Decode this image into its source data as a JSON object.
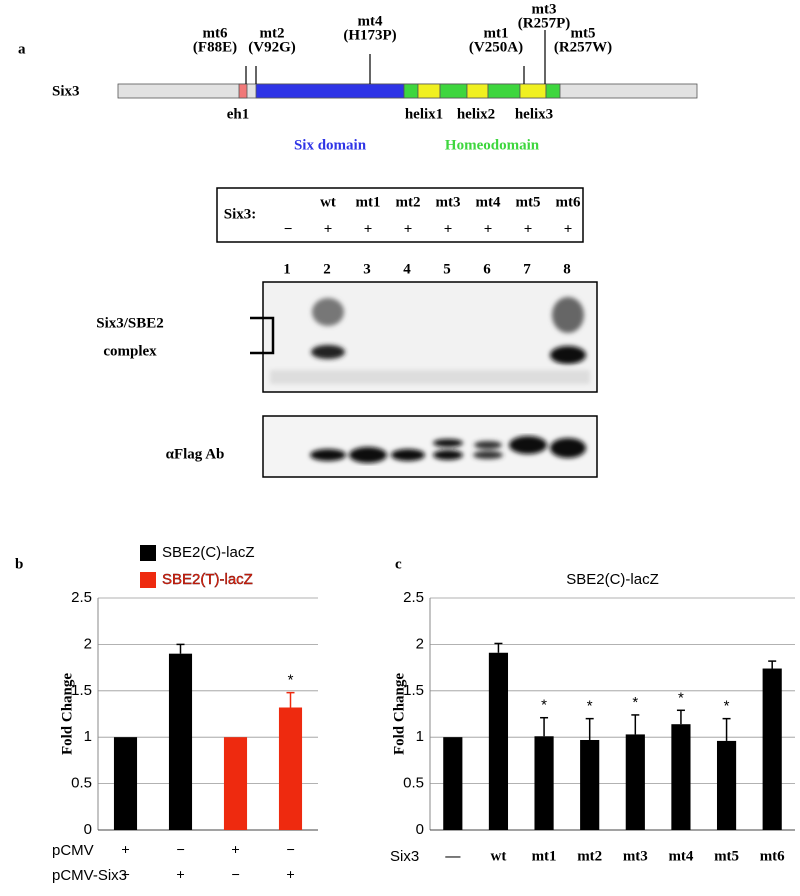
{
  "panel_a": {
    "label": "a",
    "protein": "Six3",
    "mutations": [
      {
        "name": "mt6",
        "change": "(F88E)"
      },
      {
        "name": "mt2",
        "change": "(V92G)"
      },
      {
        "name": "mt4",
        "change": "(H173P)"
      },
      {
        "name": "mt1",
        "change": "(V250A)"
      },
      {
        "name": "mt3",
        "change": "(R257P)"
      },
      {
        "name": "mt5",
        "change": "(R257W)"
      }
    ],
    "regions": [
      "eh1",
      "helix1",
      "helix2",
      "helix3"
    ],
    "domains": [
      "Six domain",
      "Homeodomain"
    ],
    "lane_table": {
      "header": "Six3:",
      "lanes": [
        {
          "sign": "−"
        },
        {
          "name": "wt",
          "sign": "+"
        },
        {
          "name": "mt1",
          "sign": "+"
        },
        {
          "name": "mt2",
          "sign": "+"
        },
        {
          "name": "mt3",
          "sign": "+"
        },
        {
          "name": "mt4",
          "sign": "+"
        },
        {
          "name": "mt5",
          "sign": "+"
        },
        {
          "name": "mt6",
          "sign": "+"
        }
      ]
    },
    "lane_numbers": [
      1,
      2,
      3,
      4,
      5,
      6,
      7,
      8
    ],
    "gel_labels": [
      "Six3/SBE2",
      "complex"
    ],
    "western_label": "αFlag Ab"
  },
  "chart_data": [
    {
      "type": "bar",
      "panel": "b",
      "ylabel": "Fold Change",
      "ylim": [
        0,
        2.5
      ],
      "yticks": [
        0,
        0.5,
        1,
        1.5,
        2,
        2.5
      ],
      "grid": true,
      "categories": [
        null,
        null,
        null,
        null
      ],
      "series": [
        {
          "name": "SBE2(C)-lacZ",
          "color": "#000000",
          "values": [
            1,
            1.9,
            null,
            null
          ],
          "errors": [
            null,
            0.1,
            null,
            null
          ]
        },
        {
          "name": "SBE2(T)-lacZ",
          "color": "#ee2a0f",
          "values": [
            null,
            null,
            1,
            1.32
          ],
          "errors": [
            null,
            null,
            null,
            0.16
          ],
          "annotations": [
            null,
            null,
            null,
            "*"
          ]
        }
      ],
      "x_rows": [
        {
          "name": "pCMV",
          "labels": [
            "+",
            "−",
            "+",
            "−"
          ]
        },
        {
          "name": "pCMV-Six3",
          "labels": [
            "−",
            "+",
            "−",
            "+"
          ]
        }
      ]
    },
    {
      "type": "bar",
      "panel": "c",
      "title": "SBE2(C)-lacZ",
      "ylabel": "Fold Change",
      "xlabel": "Six3",
      "ylim": [
        0,
        2.5
      ],
      "yticks": [
        0,
        0.5,
        1,
        1.5,
        2,
        2.5
      ],
      "grid": true,
      "color": "#000000",
      "categories": [
        "—",
        "wt",
        "mt1",
        "mt2",
        "mt3",
        "mt4",
        "mt5",
        "mt6"
      ],
      "values": [
        1,
        1.91,
        1.01,
        0.97,
        1.03,
        1.14,
        0.96,
        1.74
      ],
      "errors": [
        null,
        0.1,
        0.2,
        0.23,
        0.21,
        0.15,
        0.24,
        0.08
      ],
      "annotations": [
        null,
        null,
        "*",
        "*",
        "*",
        "*",
        "*",
        null
      ]
    }
  ]
}
